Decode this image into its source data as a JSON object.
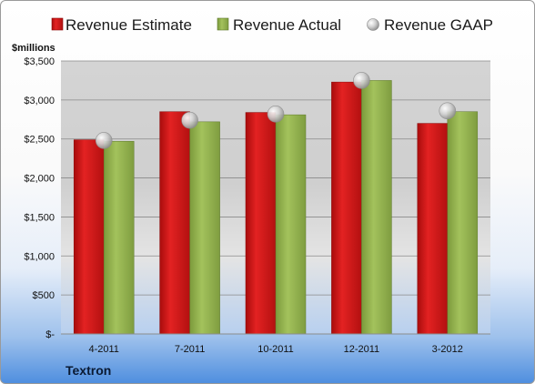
{
  "company": "Textron",
  "colors": {
    "estimate": "#cc1111",
    "actual": "#8fb04a",
    "gaap": "#c8c8c8",
    "company_text": "#0a1a33"
  },
  "chart_data": {
    "type": "bar",
    "unit_label": "$millions",
    "categories": [
      "4-2011",
      "7-2011",
      "10-2011",
      "12-2011",
      "3-2012"
    ],
    "series": [
      {
        "name": "Revenue Estimate",
        "values": [
          2490,
          2850,
          2840,
          3230,
          2700
        ]
      },
      {
        "name": "Revenue Actual",
        "values": [
          2470,
          2720,
          2810,
          3250,
          2850
        ]
      },
      {
        "name": "Revenue GAAP",
        "values": [
          2480,
          2740,
          2820,
          3250,
          2860
        ]
      }
    ],
    "ylim": [
      0,
      3500
    ],
    "yticks": [
      0,
      500,
      1000,
      1500,
      2000,
      2500,
      3000,
      3500
    ],
    "ytick_labels": [
      "$-",
      "$500",
      "$1,000",
      "$1,500",
      "$2,000",
      "$2,500",
      "$3,000",
      "$3,500"
    ],
    "grid": true,
    "legend": "top"
  }
}
